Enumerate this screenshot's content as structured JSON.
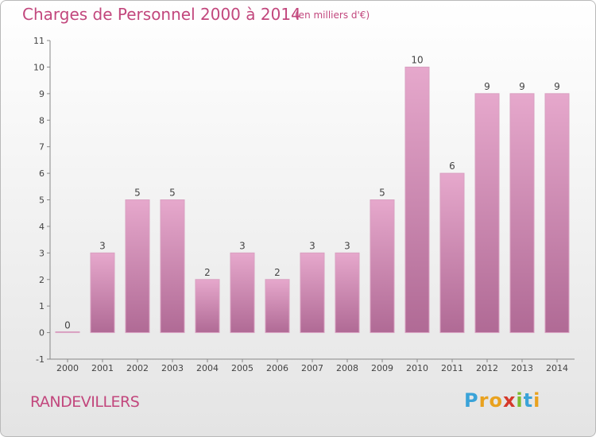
{
  "title": "Charges de Personnel 2000 à 2014",
  "subtitle": "(en milliers d'€)",
  "commune": "RANDEVILLERS",
  "logo": {
    "text": "Proxiti",
    "letters": [
      {
        "ch": "P",
        "color": "#3aa3d8"
      },
      {
        "ch": "r",
        "color": "#e9a21f"
      },
      {
        "ch": "o",
        "color": "#e9a21f"
      },
      {
        "ch": "x",
        "color": "#d5392b"
      },
      {
        "ch": "i",
        "color": "#7dbb2f"
      },
      {
        "ch": "t",
        "color": "#3aa3d8"
      },
      {
        "ch": "i",
        "color": "#e9a21f"
      }
    ]
  },
  "colors": {
    "bar_top": "#e6a8cc",
    "bar_bottom": "#b06a95",
    "bar_stroke": "#d9a0c1",
    "title": "#c2477d",
    "axis": "#888888"
  },
  "chart_data": {
    "type": "bar",
    "categories": [
      "2000",
      "2001",
      "2002",
      "2003",
      "2004",
      "2005",
      "2006",
      "2007",
      "2008",
      "2009",
      "2010",
      "2011",
      "2012",
      "2013",
      "2014"
    ],
    "values": [
      0,
      3,
      5,
      5,
      2,
      3,
      2,
      3,
      3,
      5,
      10,
      6,
      9,
      9,
      9
    ],
    "title": "Charges de Personnel 2000 à 2014",
    "subtitle": "(en milliers d'€)",
    "ylim": [
      -1,
      11
    ],
    "yticks": [
      -1,
      0,
      1,
      2,
      3,
      4,
      5,
      6,
      7,
      8,
      9,
      10,
      11
    ],
    "grid": false,
    "legend": "none"
  }
}
